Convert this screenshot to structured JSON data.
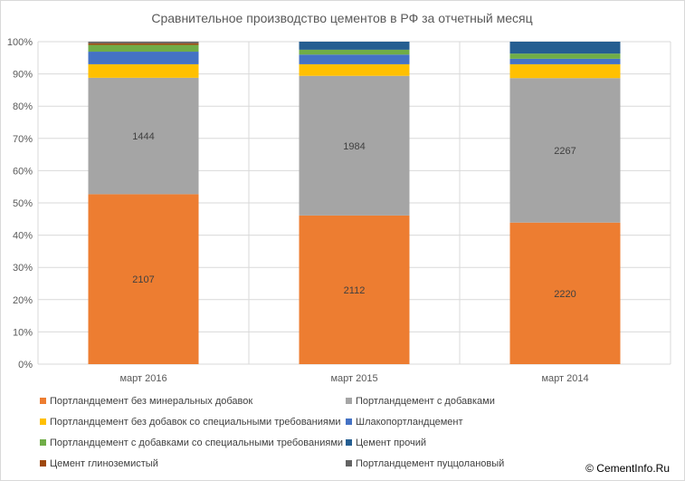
{
  "chart_data": {
    "type": "bar",
    "stacked": "percent",
    "title": "Сравнительное производство цементов в РФ за отчетный месяц",
    "xlabel": "",
    "ylabel": "",
    "ylim": [
      0,
      100
    ],
    "y_ticks": [
      "0%",
      "10%",
      "20%",
      "30%",
      "40%",
      "50%",
      "60%",
      "70%",
      "80%",
      "90%",
      "100%"
    ],
    "grid": true,
    "legend_position": "bottom",
    "categories": [
      "март 2016",
      "март 2015",
      "март 2014"
    ],
    "series": [
      {
        "name": "Портландцемент без минеральных добавок",
        "color": "#ED7D31",
        "values": [
          52.7,
          46.1,
          43.9
        ],
        "data_labels": [
          "2107",
          "2112",
          "2220"
        ]
      },
      {
        "name": "Портландцемент с добавками",
        "color": "#A5A5A5",
        "values": [
          36.1,
          43.3,
          44.8
        ],
        "data_labels": [
          "1444",
          "1984",
          "2267"
        ]
      },
      {
        "name": "Портландцемент без добавок со специальными требованиями",
        "color": "#FFC000",
        "values": [
          4.2,
          3.6,
          4.3
        ]
      },
      {
        "name": "Шлакопортландцемент",
        "color": "#4472C4",
        "values": [
          3.9,
          3.0,
          1.7
        ]
      },
      {
        "name": "Портландцемент с добавками со специальными требованиями",
        "color": "#70AD47",
        "values": [
          2.1,
          1.5,
          1.6
        ]
      },
      {
        "name": "Цемент прочий",
        "color": "#255E91",
        "values": [
          0.0,
          2.5,
          3.7
        ]
      },
      {
        "name": "Цемент глиноземистый",
        "color": "#9E480E",
        "values": [
          0.5,
          0.0,
          0.0
        ]
      },
      {
        "name": "Портландцемент пуццолановый",
        "color": "#636363",
        "values": [
          0.5,
          0.0,
          0.0
        ]
      }
    ]
  },
  "copyright": "© CementInfo.Ru"
}
